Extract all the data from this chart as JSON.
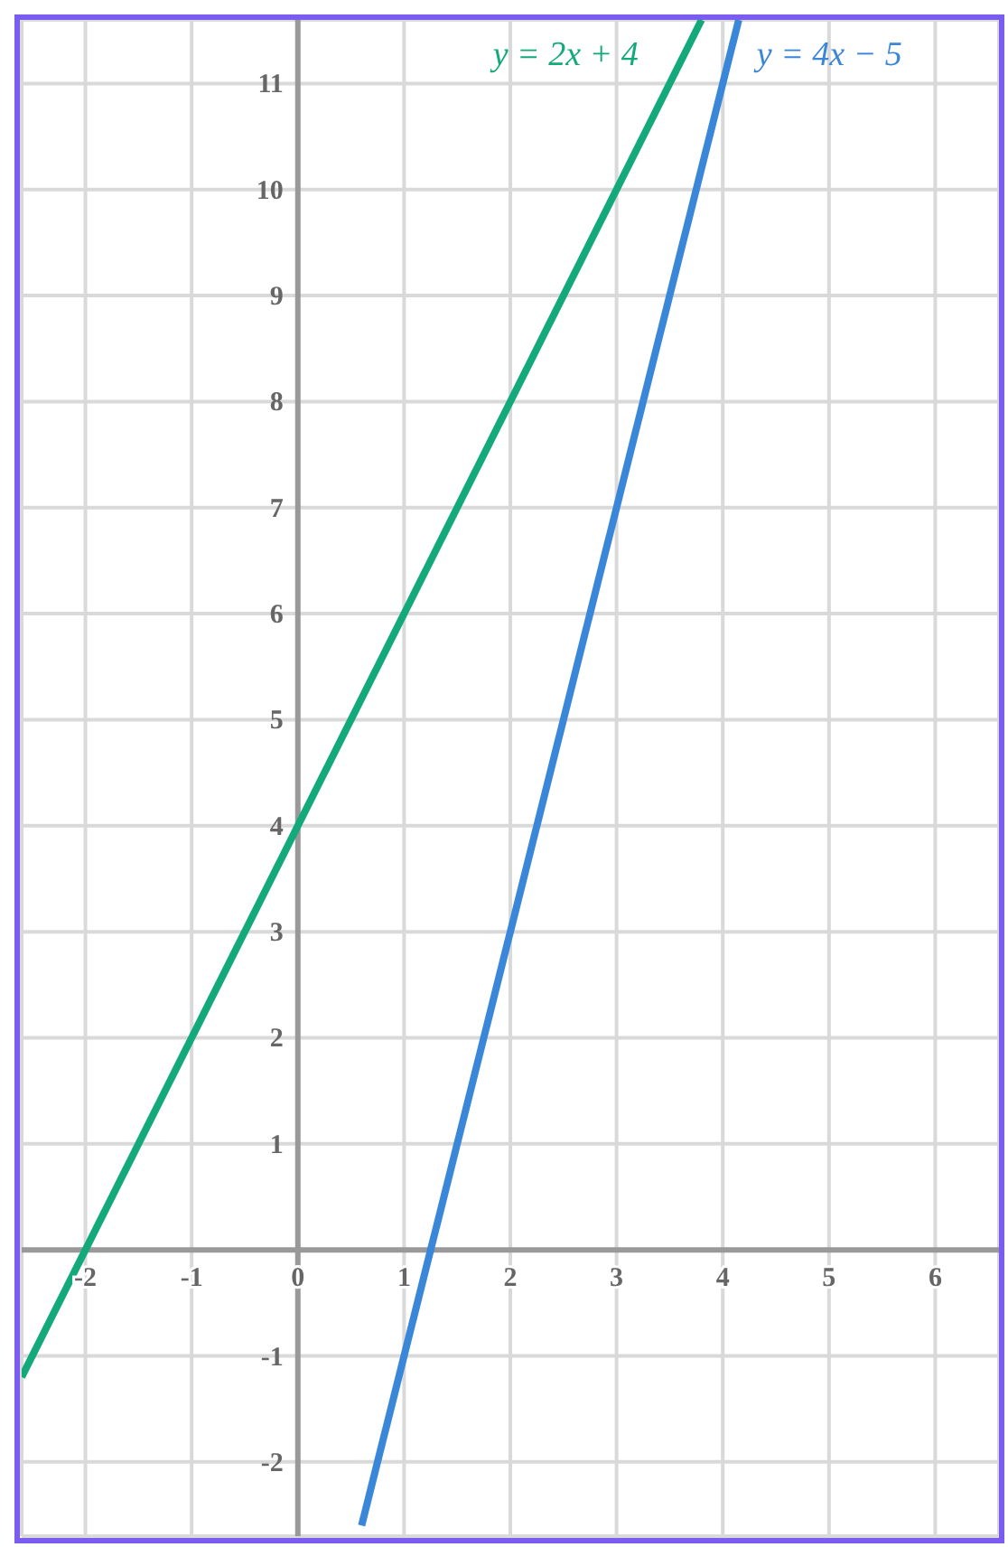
{
  "chart_data": {
    "type": "line",
    "series": [
      {
        "name": "y = 2x + 4",
        "color": "#13a97b",
        "x": [
          -2.6,
          3.8
        ],
        "values": [
          -1.2,
          11.6
        ]
      },
      {
        "name": "y = 4x − 5",
        "color": "#3a86d8",
        "x": [
          0.6,
          4.15
        ],
        "values": [
          -2.6,
          11.6
        ]
      }
    ],
    "xlim": [
      -2.6,
      6.6
    ],
    "ylim": [
      -2.7,
      11.6
    ],
    "xticks": [
      -2,
      -1,
      0,
      1,
      2,
      3,
      4,
      5,
      6
    ],
    "yticks": [
      -2,
      -1,
      1,
      2,
      3,
      4,
      5,
      6,
      7,
      8,
      9,
      10,
      11
    ],
    "grid": true,
    "marker": "none",
    "line_style": "solid"
  }
}
